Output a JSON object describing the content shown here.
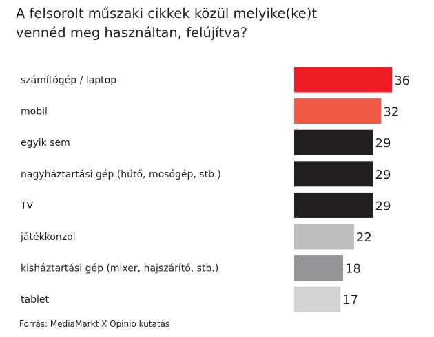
{
  "title_lines": [
    "A felsorolt műszaki cikkek közül melyike(ke)t",
    "vennéd meg használtan, felújítva?"
  ],
  "source": "Forrás: MediaMarkt X Opinio kutatás",
  "colors": {
    "red": "#ed1c24",
    "coral": "#f15a47",
    "dark": "#231f20",
    "light_gray": "#bcbec0",
    "mid_gray": "#939598",
    "pale_gray": "#d1d3d4"
  },
  "chart_data": {
    "type": "bar",
    "orientation": "horizontal",
    "categories": [
      "számítógép / laptop",
      "mobil",
      "egyik sem",
      "nagyháztartási gép (hűtő, mosógép, stb.)",
      "TV",
      "játékkonzol",
      "kisháztartási gép  (mixer, hajszárító, stb.)",
      "tablet"
    ],
    "values": [
      36,
      32,
      29,
      29,
      29,
      22,
      18,
      17
    ],
    "bar_colors": [
      "#ed1c24",
      "#f15a47",
      "#231f20",
      "#231f20",
      "#231f20",
      "#bcbec0",
      "#939598",
      "#d1d3d4"
    ],
    "title": "A felsorolt műszaki cikkek közül melyike(ke)t vennéd meg használtan, felújítva?",
    "xlabel": "",
    "ylabel": "",
    "grid": false,
    "legend": false
  }
}
